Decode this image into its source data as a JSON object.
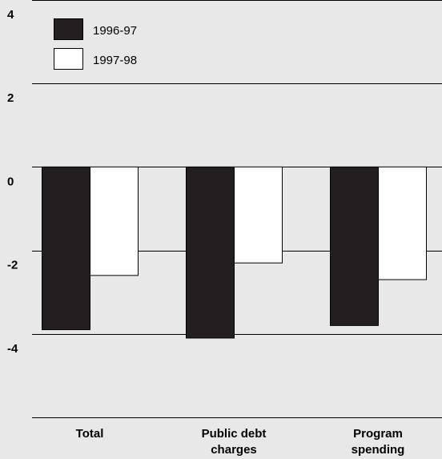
{
  "chart_data": {
    "type": "bar",
    "categories": [
      [
        "Total"
      ],
      [
        "Public debt",
        "charges"
      ],
      [
        "Program",
        "spending"
      ]
    ],
    "series": [
      {
        "name": "1996-97",
        "color": "#231f20",
        "values": [
          -3.9,
          -4.1,
          -3.8
        ]
      },
      {
        "name": "1997-98",
        "color": "#ffffff",
        "values": [
          -2.6,
          -2.3,
          -2.7
        ]
      }
    ],
    "ylim": [
      -6,
      4
    ],
    "yticks": [
      4,
      2,
      0,
      -2,
      -4
    ],
    "ytick_labels": [
      "4",
      "2",
      "0",
      "-2",
      "-4"
    ],
    "grid": true,
    "legend": "top-left",
    "background": "#e8e8e8",
    "title": "",
    "xlabel": "",
    "ylabel": ""
  }
}
